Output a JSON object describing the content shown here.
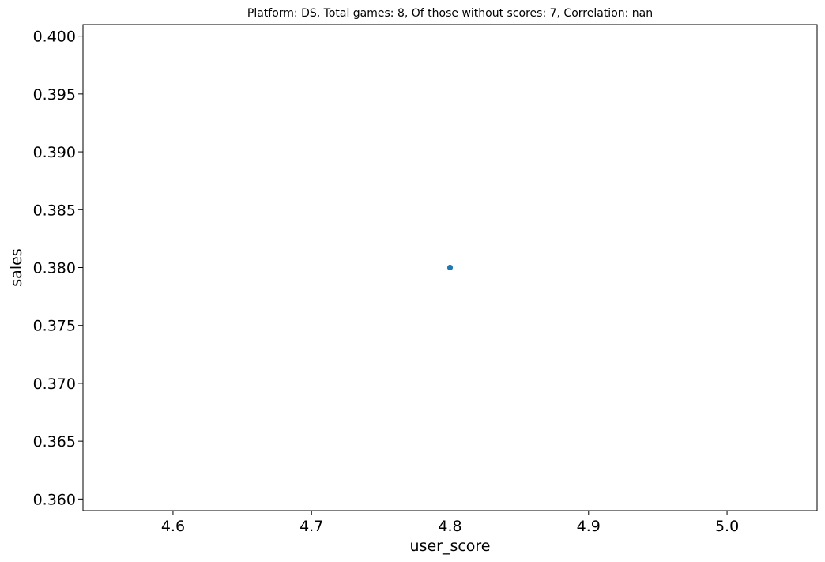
{
  "chart_data": {
    "type": "scatter",
    "title": "Platform: DS, Total games: 8, Of those without scores: 7, Correlation: nan",
    "xlabel": "user_score",
    "ylabel": "sales",
    "xlim": [
      4.535,
      5.065
    ],
    "ylim": [
      0.359,
      0.401
    ],
    "xticks": [
      4.6,
      4.7,
      4.8,
      4.9,
      5.0
    ],
    "xtick_labels": [
      "4.6",
      "4.7",
      "4.8",
      "4.9",
      "5.0"
    ],
    "yticks": [
      0.36,
      0.365,
      0.37,
      0.375,
      0.38,
      0.385,
      0.39,
      0.395,
      0.4
    ],
    "ytick_labels": [
      "0.360",
      "0.365",
      "0.370",
      "0.375",
      "0.380",
      "0.385",
      "0.390",
      "0.395",
      "0.400"
    ],
    "grid": false,
    "legend": "none",
    "colors": {
      "marker": "#1f77b4",
      "axes": "#000000"
    },
    "series": [
      {
        "x": [
          4.8
        ],
        "y": [
          0.38
        ]
      }
    ]
  }
}
